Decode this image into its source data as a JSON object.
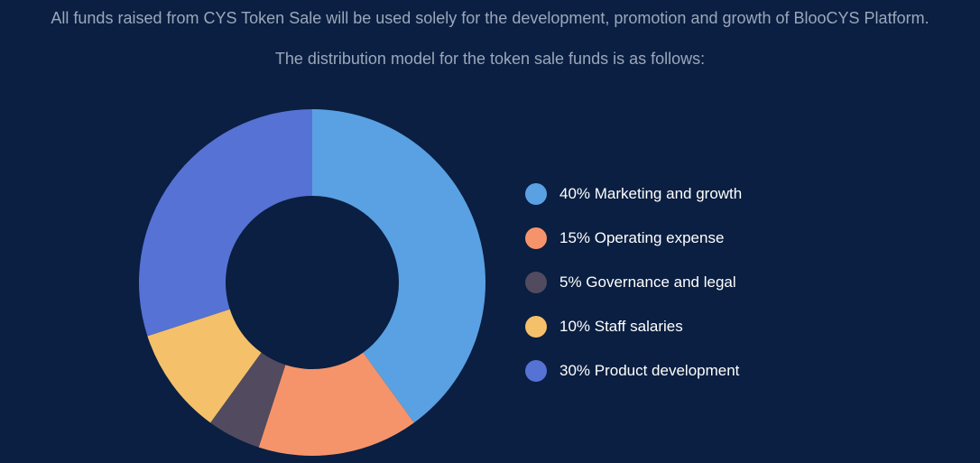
{
  "header": {
    "intro": "All funds raised from CYS Token Sale will be used solely for the development, promotion and growth of BlooCYS Platform.",
    "subtitle": "The distribution model for the token sale funds is as follows:"
  },
  "chart_data": {
    "type": "pie",
    "style": "donut",
    "start_angle": "top",
    "direction": "clockwise",
    "legend_position": "right",
    "categories": [
      "Marketing and growth",
      "Operating expense",
      "Governance and legal",
      "Staff salaries",
      "Product development"
    ],
    "values": [
      40,
      15,
      5,
      10,
      30
    ],
    "colors": [
      "#5aa1e3",
      "#f5946b",
      "#524a5e",
      "#f5c06a",
      "#5672d4"
    ],
    "legend": [
      "40% Marketing and growth",
      "15% Operating expense",
      "5% Governance and legal",
      "10% Staff salaries",
      "30% Product development"
    ]
  }
}
